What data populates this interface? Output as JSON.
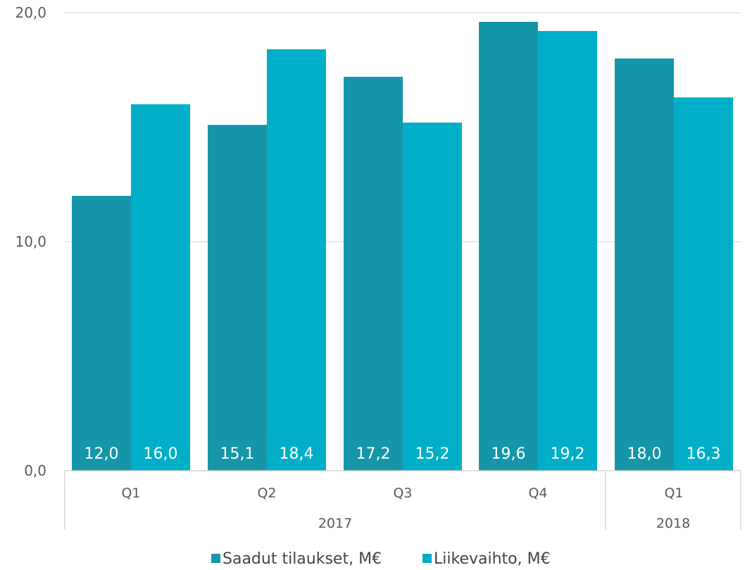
{
  "chart_data": {
    "type": "bar",
    "categories": [
      "Q1",
      "Q2",
      "Q3",
      "Q4",
      "Q1"
    ],
    "groups": [
      {
        "label": "2017",
        "count": 4
      },
      {
        "label": "2018",
        "count": 1
      }
    ],
    "series": [
      {
        "name": "Saadut tilaukset, M€",
        "color": "#1596a8",
        "values": [
          12.0,
          15.1,
          17.2,
          19.6,
          18.0
        ],
        "labels": [
          "12,0",
          "15,1",
          "17,2",
          "19,6",
          "18,0"
        ]
      },
      {
        "name": "Liikevaihto, M€",
        "color": "#00afc7",
        "values": [
          16.0,
          18.4,
          15.2,
          19.2,
          16.3
        ],
        "labels": [
          "16,0",
          "18,4",
          "15,2",
          "19,2",
          "16,3"
        ]
      }
    ],
    "yticks": [
      {
        "value": 0,
        "label": "0,0"
      },
      {
        "value": 10,
        "label": "10,0"
      },
      {
        "value": 20,
        "label": "20,0"
      }
    ],
    "ylim": [
      0,
      20
    ],
    "grid": true,
    "legend_position": "bottom",
    "title": "",
    "xlabel": "",
    "ylabel": ""
  }
}
